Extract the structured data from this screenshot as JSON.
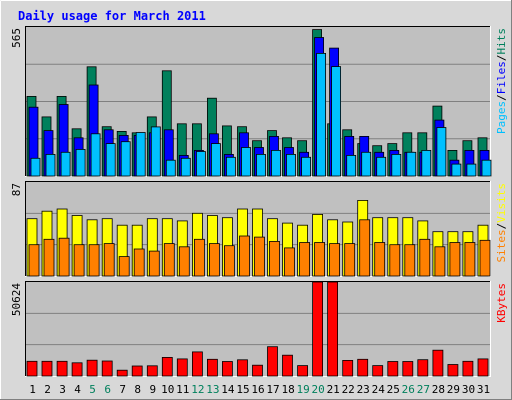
{
  "chart_data": {
    "type": "bar",
    "title": "Daily usage for March 2011",
    "categories": [
      "1",
      "2",
      "3",
      "4",
      "5",
      "6",
      "7",
      "8",
      "9",
      "10",
      "11",
      "12",
      "13",
      "14",
      "15",
      "16",
      "17",
      "18",
      "19",
      "20",
      "21",
      "22",
      "23",
      "24",
      "25",
      "26",
      "27",
      "28",
      "29",
      "30",
      "31"
    ],
    "weekend_days": [
      "5",
      "6",
      "12",
      "13",
      "19",
      "20",
      "26",
      "27"
    ],
    "colors": {
      "hits": "#00805c",
      "files": "#0000ff",
      "pages": "#00c0ff",
      "visits": "#ffff00",
      "sites": "#ff8000",
      "kbytes": "#ff0000",
      "title": "#0000ff",
      "weekend": "#00805c",
      "panel_bg": "#c0c0c0",
      "frame_bg": "#d8d8d8",
      "gridline": "#808080"
    },
    "panels": [
      {
        "id": "traffic",
        "max_label": "565",
        "ylim": [
          0,
          565
        ],
        "legend": [
          "Pages",
          "Files",
          "Hits"
        ],
        "legend_sep": "/",
        "series": [
          {
            "name": "Hits",
            "key": "hits",
            "values": [
              302,
              224,
              302,
              179,
              414,
              187,
              169,
              164,
              224,
              399,
              198,
              198,
              295,
              190,
              187,
              134,
              172,
              145,
              134,
              555,
              198,
              175,
              123,
              115,
              123,
              164,
              164,
              265,
              97,
              134,
              145
            ]
          },
          {
            "name": "Files",
            "key": "files",
            "values": [
              261,
              172,
              271,
              145,
              345,
              175,
              154,
              154,
              164,
              175,
              78,
              97,
              160,
              82,
              164,
              108,
              150,
              108,
              90,
              525,
              485,
              150,
              150,
              90,
              97,
              90,
              90,
              212,
              60,
              97,
              97
            ]
          },
          {
            "name": "Pages",
            "key": "pages",
            "values": [
              67,
              82,
              90,
              101,
              160,
              123,
              130,
              165,
              186,
              60,
              67,
              93,
              123,
              71,
              108,
              82,
              97,
              82,
              71,
              465,
              415,
              78,
              90,
              71,
              82,
              90,
              97,
              184,
              45,
              45,
              60
            ]
          }
        ]
      },
      {
        "id": "visitors",
        "max_label": "87",
        "ylim": [
          0,
          87
        ],
        "legend": [
          "Sites",
          "Visits"
        ],
        "legend_sep": "/",
        "series": [
          {
            "name": "Visits",
            "key": "visits",
            "values": [
              53,
              60,
              62,
              56,
              52,
              53,
              47,
              47,
              53,
              53,
              51,
              58,
              56,
              54,
              62,
              62,
              53,
              49,
              47,
              57,
              52,
              50,
              70,
              54,
              54,
              54,
              51,
              41,
              41,
              41,
              47
            ]
          },
          {
            "name": "Sites",
            "key": "sites",
            "values": [
              29,
              34,
              35,
              29,
              29,
              30,
              18,
              25,
              23,
              30,
              27,
              34,
              30,
              28,
              37,
              36,
              32,
              26,
              31,
              31,
              30,
              30,
              52,
              31,
              29,
              29,
              34,
              27,
              31,
              31,
              33
            ]
          }
        ]
      },
      {
        "id": "kbytes",
        "max_label": "50624",
        "ylim": [
          0,
          50624
        ],
        "legend": [
          "KBytes"
        ],
        "legend_sep": "/",
        "series": [
          {
            "name": "KBytes",
            "key": "kbytes",
            "values": [
              7900,
              7900,
              7900,
              7100,
              8500,
              8100,
              3100,
              5400,
              5500,
              10000,
              9200,
              13000,
              9000,
              7800,
              8700,
              5800,
              15800,
              11200,
              5600,
              50624,
              50624,
              8400,
              9000,
              5600,
              7800,
              7800,
              8800,
              13900,
              6200,
              7900,
              9200
            ]
          }
        ]
      }
    ]
  }
}
